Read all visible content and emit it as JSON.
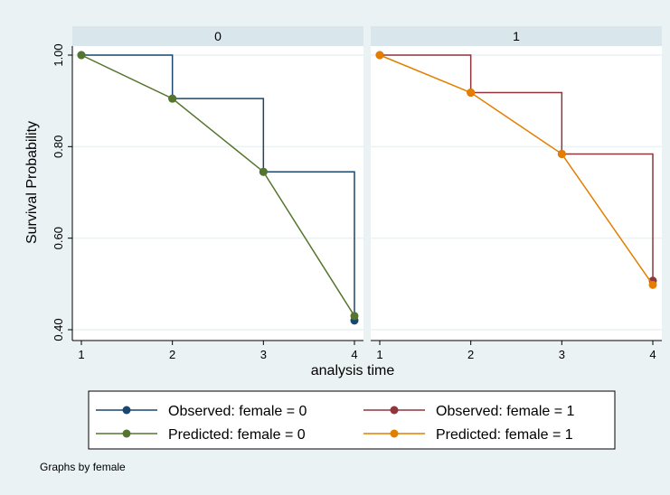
{
  "chart_data": {
    "type": "line",
    "xlabel": "analysis time",
    "ylabel": "Survival Probability",
    "note": "Graphs by female",
    "xlim": [
      1,
      4
    ],
    "ylim": [
      0.4,
      1.0
    ],
    "x_ticks": [
      "1",
      "2",
      "3",
      "4"
    ],
    "y_ticks": [
      {
        "value": 0.4,
        "label": "0.40"
      },
      {
        "value": 0.6,
        "label": "0.60"
      },
      {
        "value": 0.8,
        "label": "0.80"
      },
      {
        "value": 1.0,
        "label": "1.00"
      }
    ],
    "grid": true,
    "legend_position": "bottom",
    "panels": [
      {
        "title": "0",
        "series": [
          {
            "name": "Observed: female = 0",
            "color": "#1a476f",
            "kind": "step",
            "x": [
              1,
              2,
              3,
              4
            ],
            "y": [
              1.0,
              0.905,
              0.745,
              0.42
            ]
          },
          {
            "name": "Predicted: female = 0",
            "color": "#55752f",
            "kind": "line",
            "x": [
              1,
              2,
              3,
              4
            ],
            "y": [
              1.0,
              0.905,
              0.745,
              0.43
            ]
          }
        ]
      },
      {
        "title": "1",
        "series": [
          {
            "name": "Observed: female = 1",
            "color": "#90353b",
            "kind": "step",
            "x": [
              1,
              2,
              3,
              4
            ],
            "y": [
              1.0,
              0.918,
              0.784,
              0.507
            ]
          },
          {
            "name": "Predicted: female = 1",
            "color": "#e37e00",
            "kind": "line",
            "x": [
              1,
              2,
              3,
              4
            ],
            "y": [
              1.0,
              0.918,
              0.784,
              0.498
            ]
          }
        ]
      }
    ]
  }
}
